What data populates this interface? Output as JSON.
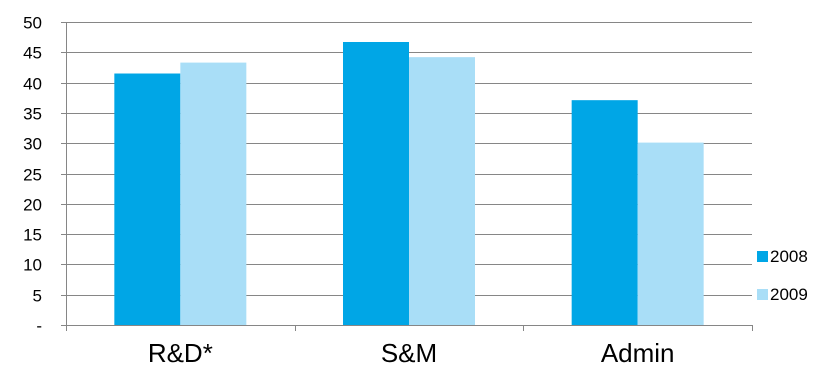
{
  "chart_data": {
    "type": "bar",
    "categories": [
      "R&D*",
      "S&M",
      "Admin"
    ],
    "series": [
      {
        "name": "2008",
        "color": "#00a6e6",
        "values": [
          41.5,
          46.7,
          37.1
        ]
      },
      {
        "name": "2009",
        "color": "#a9def7",
        "values": [
          43.3,
          44.2,
          30.1
        ]
      }
    ],
    "ylim": [
      0,
      50
    ],
    "yticks": [
      0,
      5,
      10,
      15,
      20,
      25,
      30,
      35,
      40,
      45,
      50
    ],
    "ytick_labels": [
      "-",
      "5",
      "10",
      "15",
      "20",
      "25",
      "30",
      "35",
      "40",
      "45",
      "50"
    ],
    "grid": true,
    "legend_position": "bottom-right",
    "gridline_color": "#868686"
  }
}
